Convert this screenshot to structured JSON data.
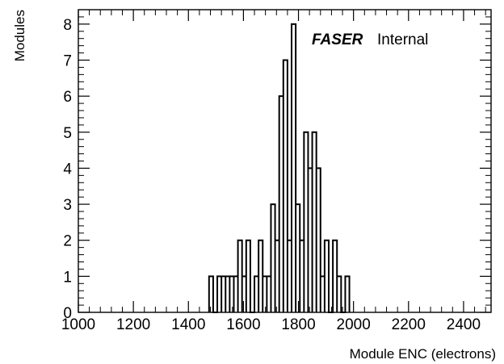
{
  "chart_data": {
    "type": "bar",
    "subtype": "histogram-step",
    "xlabel": "Module ENC (electrons)",
    "ylabel": "Modules",
    "annotation": {
      "brand": "FASER",
      "text": "Internal"
    },
    "xlim": [
      1000,
      2500
    ],
    "ylim": [
      0,
      8.4
    ],
    "x_ticks": [
      1000,
      1200,
      1400,
      1600,
      1800,
      2000,
      2200,
      2400
    ],
    "y_ticks": [
      0,
      1,
      2,
      3,
      4,
      5,
      6,
      7,
      8
    ],
    "bin_width": 15,
    "bin_start": 1000,
    "bins": [
      {
        "x": 1475,
        "value": 1
      },
      {
        "x": 1490,
        "value": 0
      },
      {
        "x": 1505,
        "value": 1
      },
      {
        "x": 1520,
        "value": 1
      },
      {
        "x": 1535,
        "value": 1
      },
      {
        "x": 1550,
        "value": 1
      },
      {
        "x": 1565,
        "value": 1
      },
      {
        "x": 1580,
        "value": 2
      },
      {
        "x": 1595,
        "value": 1
      },
      {
        "x": 1610,
        "value": 2
      },
      {
        "x": 1625,
        "value": 0
      },
      {
        "x": 1640,
        "value": 1
      },
      {
        "x": 1655,
        "value": 2
      },
      {
        "x": 1670,
        "value": 1
      },
      {
        "x": 1685,
        "value": 1
      },
      {
        "x": 1700,
        "value": 3
      },
      {
        "x": 1715,
        "value": 2
      },
      {
        "x": 1730,
        "value": 6
      },
      {
        "x": 1745,
        "value": 7
      },
      {
        "x": 1760,
        "value": 2
      },
      {
        "x": 1775,
        "value": 8
      },
      {
        "x": 1790,
        "value": 3
      },
      {
        "x": 1805,
        "value": 2
      },
      {
        "x": 1820,
        "value": 5
      },
      {
        "x": 1835,
        "value": 4
      },
      {
        "x": 1850,
        "value": 5
      },
      {
        "x": 1865,
        "value": 4
      },
      {
        "x": 1880,
        "value": 1
      },
      {
        "x": 1895,
        "value": 2
      },
      {
        "x": 1910,
        "value": 0
      },
      {
        "x": 1925,
        "value": 2
      },
      {
        "x": 1940,
        "value": 1
      },
      {
        "x": 1955,
        "value": 0
      },
      {
        "x": 1970,
        "value": 1
      }
    ]
  }
}
